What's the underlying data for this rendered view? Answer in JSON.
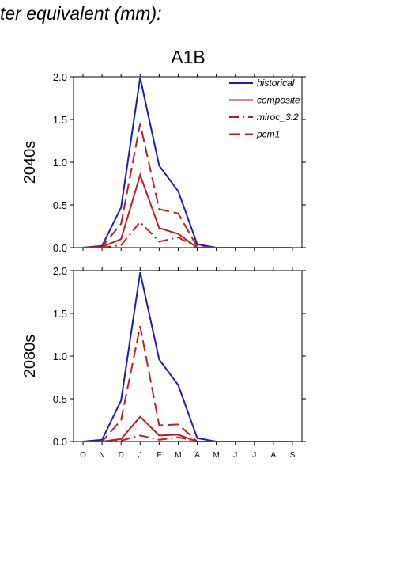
{
  "header": {
    "title_fragment": "ter equivalent (mm):"
  },
  "chart_data": {
    "type": "line",
    "title": "A1B",
    "categories": [
      "O",
      "N",
      "D",
      "J",
      "F",
      "M",
      "A",
      "M",
      "J",
      "J",
      "A",
      "S"
    ],
    "ylim": [
      0,
      2
    ],
    "yticks": [
      "0.0",
      "0.5",
      "1.0",
      "1.5",
      "2.0"
    ],
    "legend": {
      "placement": "top-right",
      "entries": [
        "historical",
        "composite",
        "miroc_3.2",
        "pcm1"
      ]
    },
    "style": {
      "historical": {
        "color": "#1c1cbc",
        "dash": ""
      },
      "composite": {
        "color": "#bb1f1f",
        "dash": ""
      },
      "miroc_3.2": {
        "color": "#bb1f1f",
        "dash": "dashdot"
      },
      "pcm1": {
        "color": "#bb1f1f",
        "dash": "dash"
      }
    },
    "panels": [
      {
        "row_label": "2040s",
        "series": [
          {
            "name": "historical",
            "values": [
              0.0,
              0.02,
              0.47,
              1.99,
              0.96,
              0.66,
              0.04,
              0.0,
              0.0,
              0.0,
              0.0,
              0.0
            ]
          },
          {
            "name": "composite",
            "values": [
              0.0,
              0.01,
              0.1,
              0.85,
              0.23,
              0.16,
              0.0,
              0.0,
              0.0,
              0.0,
              0.0,
              0.0
            ]
          },
          {
            "name": "miroc_3.2",
            "values": [
              0.0,
              0.0,
              0.03,
              0.3,
              0.07,
              0.12,
              0.0,
              0.0,
              0.0,
              0.0,
              0.0,
              0.0
            ]
          },
          {
            "name": "pcm1",
            "values": [
              0.0,
              0.01,
              0.28,
              1.45,
              0.45,
              0.4,
              0.01,
              0.0,
              0.0,
              0.0,
              0.0,
              0.0
            ]
          }
        ]
      },
      {
        "row_label": "2080s",
        "series": [
          {
            "name": "historical",
            "values": [
              0.0,
              0.02,
              0.48,
              1.98,
              0.96,
              0.66,
              0.04,
              0.0,
              0.0,
              0.0,
              0.0,
              0.0
            ]
          },
          {
            "name": "composite",
            "values": [
              0.0,
              0.0,
              0.03,
              0.29,
              0.07,
              0.08,
              0.0,
              0.0,
              0.0,
              0.0,
              0.0,
              0.0
            ]
          },
          {
            "name": "miroc_3.2",
            "values": [
              0.0,
              0.0,
              0.01,
              0.07,
              0.02,
              0.05,
              0.0,
              0.0,
              0.0,
              0.0,
              0.0,
              0.0
            ]
          },
          {
            "name": "pcm1",
            "values": [
              0.0,
              0.0,
              0.25,
              1.35,
              0.19,
              0.2,
              0.0,
              0.0,
              0.0,
              0.0,
              0.0,
              0.0
            ]
          }
        ]
      }
    ]
  }
}
